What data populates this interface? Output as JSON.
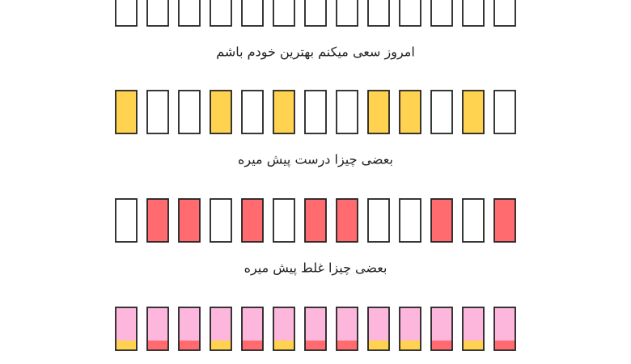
{
  "rows": [
    {
      "cells": [
        "#ffffff",
        "#ffffff",
        "#ffffff",
        "#ffffff",
        "#ffffff",
        "#ffffff",
        "#ffffff",
        "#ffffff",
        "#ffffff",
        "#ffffff",
        "#ffffff",
        "#ffffff",
        "#ffffff"
      ],
      "caption": "امروز سعی میکنم بهترین خودم باشم"
    },
    {
      "cells": [
        "#ffd24f",
        "#ffffff",
        "#ffffff",
        "#ffd24f",
        "#ffffff",
        "#ffd24f",
        "#ffffff",
        "#ffffff",
        "#ffd24f",
        "#ffd24f",
        "#ffffff",
        "#ffd24f",
        "#ffffff"
      ],
      "caption": "بعضی چیزا درست پیش میره"
    },
    {
      "cells": [
        "#ffffff",
        "#ff6b6e",
        "#ff6b6e",
        "#ffffff",
        "#ff6b6e",
        "#ffffff",
        "#ff6b6e",
        "#ff6b6e",
        "#ffffff",
        "#ffffff",
        "#ff6b6e",
        "#ffffff",
        "#ff6b6e"
      ],
      "caption": "بعضی چیزا غلط پیش میره"
    },
    {
      "base": "#fdb6dc",
      "cells": [
        "#ffd24f",
        "#ff6b6e",
        "#ff6b6e",
        "#ffd24f",
        "#ff6b6e",
        "#ffd24f",
        "#ff6b6e",
        "#ff6b6e",
        "#ffd24f",
        "#ffd24f",
        "#ff6b6e",
        "#ffd24f",
        "#ff6b6e"
      ]
    }
  ]
}
